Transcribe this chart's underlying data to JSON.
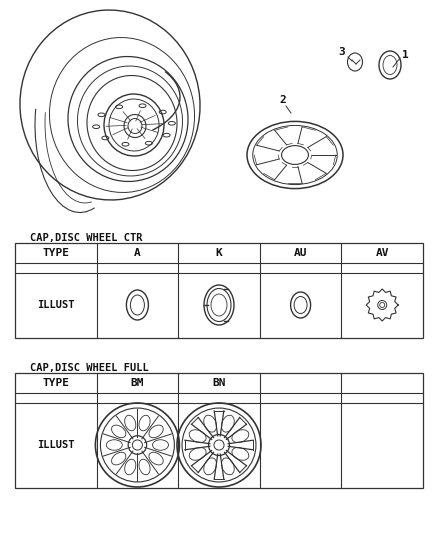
{
  "bg_color": "#ffffff",
  "table1_title": "CAP,DISC WHEEL CTR",
  "table1_headers": [
    "TYPE",
    "A",
    "K",
    "AU",
    "AV"
  ],
  "table1_row_label": "ILLUST",
  "table2_title": "CAP,DISC WHEEL FULL",
  "table2_headers": [
    "TYPE",
    "BM",
    "BN",
    "",
    ""
  ],
  "table2_row_label": "ILLUST",
  "line_color": "#333333",
  "text_color": "#111111"
}
